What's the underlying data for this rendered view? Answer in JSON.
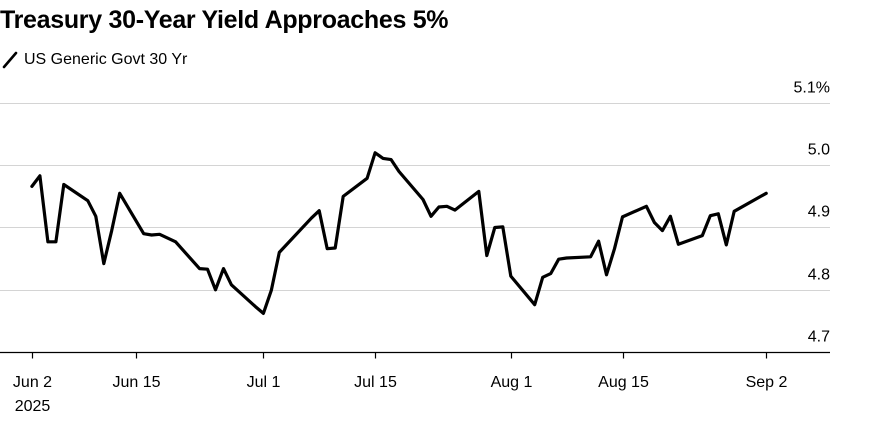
{
  "chart_data": {
    "type": "line",
    "title": "Treasury 30-Year Yield Approaches 5%",
    "xlabel": "",
    "ylabel": "",
    "grid": true,
    "legend_position": "top-left",
    "series": [
      {
        "name": "US Generic Govt 30 Yr",
        "color": "#000000",
        "x": [
          "2025-06-02",
          "2025-06-03",
          "2025-06-04",
          "2025-06-05",
          "2025-06-06",
          "2025-06-09",
          "2025-06-10",
          "2025-06-11",
          "2025-06-12",
          "2025-06-13",
          "2025-06-16",
          "2025-06-17",
          "2025-06-18",
          "2025-06-20",
          "2025-06-23",
          "2025-06-24",
          "2025-06-25",
          "2025-06-26",
          "2025-06-27",
          "2025-06-30",
          "2025-07-01",
          "2025-07-02",
          "2025-07-03",
          "2025-07-07",
          "2025-07-08",
          "2025-07-09",
          "2025-07-10",
          "2025-07-11",
          "2025-07-14",
          "2025-07-15",
          "2025-07-16",
          "2025-07-17",
          "2025-07-18",
          "2025-07-21",
          "2025-07-22",
          "2025-07-23",
          "2025-07-24",
          "2025-07-25",
          "2025-07-28",
          "2025-07-29",
          "2025-07-30",
          "2025-07-31",
          "2025-08-01",
          "2025-08-04",
          "2025-08-05",
          "2025-08-06",
          "2025-08-07",
          "2025-08-08",
          "2025-08-11",
          "2025-08-12",
          "2025-08-13",
          "2025-08-14",
          "2025-08-15",
          "2025-08-18",
          "2025-08-19",
          "2025-08-20",
          "2025-08-21",
          "2025-08-22",
          "2025-08-25",
          "2025-08-26",
          "2025-08-27",
          "2025-08-28",
          "2025-08-29",
          "2025-09-02"
        ],
        "values": [
          4.966,
          4.983,
          4.877,
          4.877,
          4.969,
          4.943,
          4.918,
          4.842,
          4.895,
          4.955,
          4.89,
          4.888,
          4.889,
          4.877,
          4.834,
          4.833,
          4.8,
          4.834,
          4.808,
          4.773,
          4.762,
          4.799,
          4.86,
          4.915,
          4.927,
          4.866,
          4.867,
          4.95,
          4.979,
          5.02,
          5.011,
          5.009,
          4.99,
          4.945,
          4.918,
          4.933,
          4.934,
          4.928,
          4.958,
          4.855,
          4.9,
          4.901,
          4.822,
          4.776,
          4.82,
          4.826,
          4.849,
          4.851,
          4.853,
          4.878,
          4.824,
          4.866,
          4.917,
          4.934,
          4.908,
          4.895,
          4.918,
          4.873,
          4.887,
          4.919,
          4.922,
          4.872,
          4.926,
          4.955
        ]
      }
    ],
    "x_ticks": [
      {
        "date": "2025-06-02",
        "label": "Jun 2",
        "sublabel": "2025"
      },
      {
        "date": "2025-06-15",
        "label": "Jun 15",
        "sublabel": ""
      },
      {
        "date": "2025-07-01",
        "label": "Jul 1",
        "sublabel": ""
      },
      {
        "date": "2025-07-15",
        "label": "Jul 15",
        "sublabel": ""
      },
      {
        "date": "2025-08-01",
        "label": "Aug 1",
        "sublabel": ""
      },
      {
        "date": "2025-08-15",
        "label": "Aug 15",
        "sublabel": ""
      },
      {
        "date": "2025-09-02",
        "label": "Sep 2",
        "sublabel": ""
      }
    ],
    "y_ticks": [
      {
        "value": 5.1,
        "label": "5.1%"
      },
      {
        "value": 5.0,
        "label": "5.0"
      },
      {
        "value": 4.9,
        "label": "4.9"
      },
      {
        "value": 4.8,
        "label": "4.8"
      },
      {
        "value": 4.7,
        "label": "4.7"
      }
    ],
    "xlim": [
      "2025-05-29",
      "2025-09-10"
    ],
    "ylim": [
      4.7,
      5.1
    ],
    "y_axis_position": "right"
  }
}
